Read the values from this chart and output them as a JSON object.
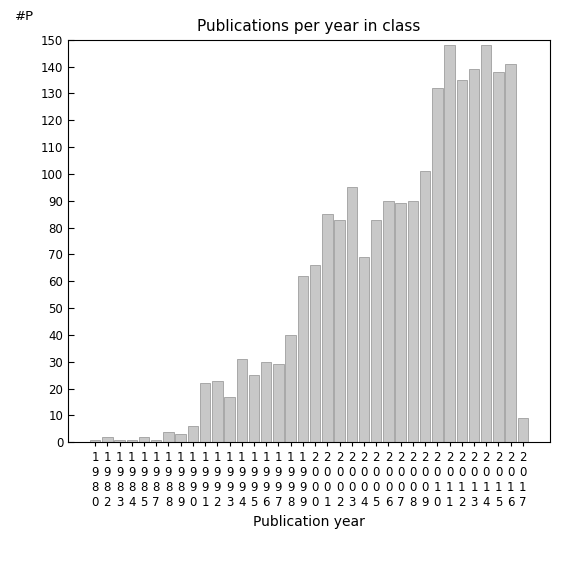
{
  "title": "Publications per year in class",
  "xlabel": "Publication year",
  "ylabel_annotation": "#P",
  "bar_color": "#c8c8c8",
  "edge_color": "#909090",
  "ylim": [
    0,
    150
  ],
  "yticks": [
    0,
    10,
    20,
    30,
    40,
    50,
    60,
    70,
    80,
    90,
    100,
    110,
    120,
    130,
    140,
    150
  ],
  "years": [
    "1980",
    "1982",
    "1983",
    "1984",
    "1985",
    "1987",
    "1988",
    "1989",
    "1990",
    "1991",
    "1992",
    "1993",
    "1994",
    "1995",
    "1996",
    "1997",
    "1998",
    "1999",
    "2000",
    "2001",
    "2002",
    "2003",
    "2004",
    "2005",
    "2006",
    "2007",
    "2008",
    "2009",
    "2010",
    "2011",
    "2012",
    "2013",
    "2014",
    "2015",
    "2016",
    "2017"
  ],
  "values": [
    1,
    2,
    1,
    1,
    2,
    1,
    4,
    3,
    6,
    22,
    23,
    17,
    31,
    25,
    30,
    29,
    40,
    62,
    66,
    85,
    83,
    95,
    69,
    83,
    90,
    89,
    90,
    101,
    132,
    148,
    135,
    139,
    148,
    138,
    141,
    9
  ],
  "tick_label_fontsize": 8.5,
  "title_fontsize": 11,
  "axis_label_fontsize": 10
}
